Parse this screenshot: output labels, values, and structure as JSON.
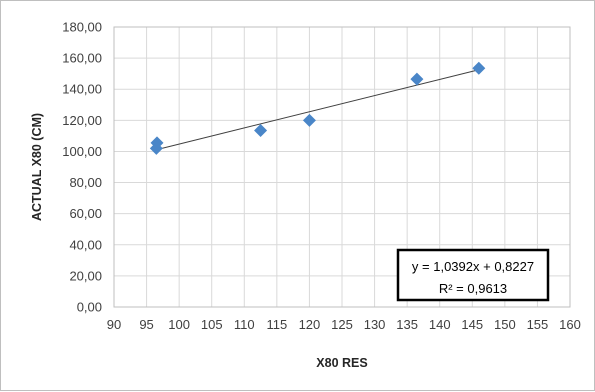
{
  "chart_data": {
    "type": "scatter",
    "xlabel": "X80 RES",
    "ylabel": "ACTUAL X80 (CM)",
    "xlim": [
      90,
      160
    ],
    "ylim": [
      0,
      180
    ],
    "x_ticks": [
      "90",
      "95",
      "100",
      "105",
      "110",
      "115",
      "120",
      "125",
      "130",
      "135",
      "140",
      "145",
      "150",
      "155",
      "160"
    ],
    "y_ticks": [
      "0,00",
      "20,00",
      "40,00",
      "60,00",
      "80,00",
      "100,00",
      "120,00",
      "140,00",
      "160,00",
      "180,00"
    ],
    "grid": true,
    "legend": "none",
    "series": [
      {
        "marker": "diamond",
        "color": "#4a86c8",
        "points": [
          {
            "x": 96.5,
            "y": 102.0
          },
          {
            "x": 96.6,
            "y": 105.5
          },
          {
            "x": 112.5,
            "y": 113.5
          },
          {
            "x": 120.0,
            "y": 120.0
          },
          {
            "x": 136.5,
            "y": 146.5
          },
          {
            "x": 146.0,
            "y": 153.5
          }
        ]
      }
    ],
    "trendline": {
      "type": "linear",
      "slope": 1.0392,
      "intercept": 0.8227,
      "x_range": [
        96.5,
        146.0
      ],
      "equation_label": "y = 1,0392x + 0,8227",
      "r2_label": "R² = 0,9613",
      "color": "#404040"
    },
    "colors": {
      "gridline": "#d9d9d9",
      "plot_border": "#bfbfbf",
      "marker": "#4a86c8"
    }
  }
}
